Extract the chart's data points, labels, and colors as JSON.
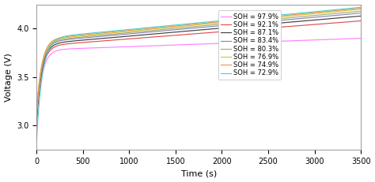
{
  "xlabel": "Time (s)",
  "ylabel": "Voltage (V)",
  "xlim": [
    0,
    3500
  ],
  "ylim": [
    2.75,
    4.25
  ],
  "xticks": [
    0,
    500,
    1000,
    1500,
    2000,
    2500,
    3000,
    3500
  ],
  "yticks": [
    3.0,
    3.5,
    4.0
  ],
  "legend_fontsize": 6.0,
  "axis_fontsize": 8,
  "tick_fontsize": 7,
  "background_color": "#ffffff",
  "linewidth": 0.85,
  "series": [
    {
      "label": "SOH = 97.9%",
      "color": "#FF80FF",
      "v_start": 3.0,
      "v_end": 3.9,
      "k1": 0.018,
      "k2": 0.0001,
      "v_knee": 3.78
    },
    {
      "label": "SOH = 92.1%",
      "color": "#E05050",
      "v_start": 3.04,
      "v_end": 4.08,
      "k1": 0.018,
      "k2": 0.00015,
      "v_knee": 3.82
    },
    {
      "label": "SOH = 87.1%",
      "color": "#404040",
      "v_start": 3.07,
      "v_end": 4.13,
      "k1": 0.018,
      "k2": 0.00018,
      "v_knee": 3.84
    },
    {
      "label": "SOH = 83.4%",
      "color": "#8888BB",
      "v_start": 3.09,
      "v_end": 4.16,
      "k1": 0.018,
      "k2": 0.0002,
      "v_knee": 3.86
    },
    {
      "label": "SOH = 80.3%",
      "color": "#AAAA70",
      "v_start": 3.11,
      "v_end": 4.18,
      "k1": 0.018,
      "k2": 0.00022,
      "v_knee": 3.87
    },
    {
      "label": "SOH = 76.9%",
      "color": "#CCCC40",
      "v_start": 3.13,
      "v_end": 4.2,
      "k1": 0.018,
      "k2": 0.00023,
      "v_knee": 3.88
    },
    {
      "label": "SOH = 74.9%",
      "color": "#EE9955",
      "v_start": 3.15,
      "v_end": 4.21,
      "k1": 0.018,
      "k2": 0.00024,
      "v_knee": 3.89
    },
    {
      "label": "SOH = 72.9%",
      "color": "#55CCCC",
      "v_start": 2.85,
      "v_end": 4.22,
      "k1": 0.016,
      "k2": 0.00025,
      "v_knee": 3.9
    }
  ]
}
